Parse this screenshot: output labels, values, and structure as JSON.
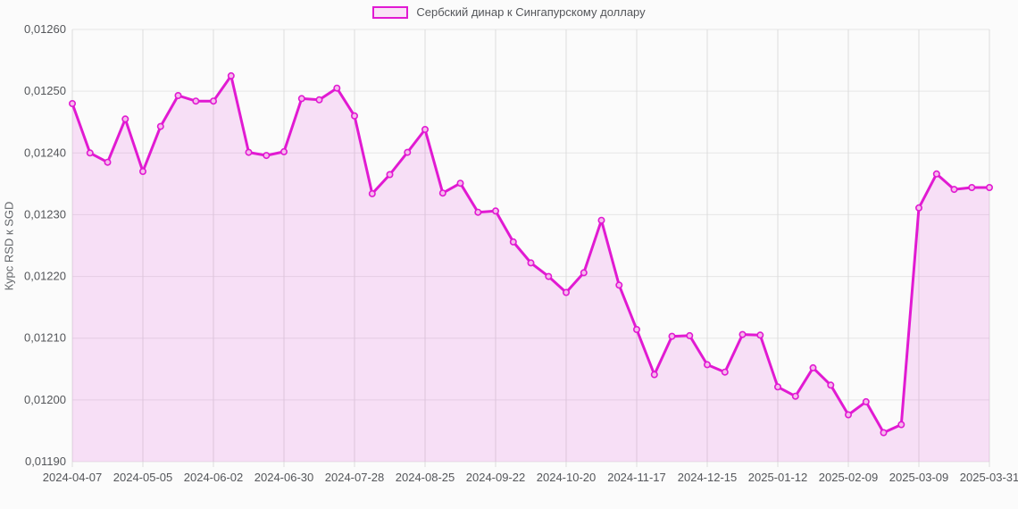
{
  "legend": {
    "label": "Сербский динар к Сингапурскому доллару"
  },
  "colors": {
    "line": "#e11ad2",
    "area_fill": "rgba(225,26,210,0.12)",
    "marker_fill": "#f5bcec",
    "grid_horizontal": "#e6e6e6",
    "grid_vertical": "#dcdcdc",
    "tick_text": "#54565a",
    "background": "#fbfbfb"
  },
  "chart_data": {
    "type": "area",
    "title": "",
    "legend": "Сербский динар к Сингапурскому доллару",
    "xlabel": "",
    "ylabel": "Курс RSD к SGD",
    "ylim": [
      0.0119,
      0.0126
    ],
    "grid": true,
    "legend_position": "top-center",
    "decimal_separator": ",",
    "y_tick_labels": [
      "0,01260",
      "0,01250",
      "0,01240",
      "0,01230",
      "0,01220",
      "0,01210",
      "0,01200",
      "0,01190"
    ],
    "y_tick_values": [
      0.0126,
      0.0125,
      0.0124,
      0.0123,
      0.0122,
      0.0121,
      0.012,
      0.0119
    ],
    "x_tick_indices": [
      0,
      4,
      8,
      12,
      16,
      20,
      24,
      28,
      32,
      36,
      40,
      44,
      48,
      52
    ],
    "x": [
      "2024-04-07",
      "2024-04-14",
      "2024-04-21",
      "2024-04-28",
      "2024-05-05",
      "2024-05-12",
      "2024-05-19",
      "2024-05-26",
      "2024-06-02",
      "2024-06-09",
      "2024-06-16",
      "2024-06-23",
      "2024-06-30",
      "2024-07-07",
      "2024-07-14",
      "2024-07-21",
      "2024-07-28",
      "2024-08-04",
      "2024-08-11",
      "2024-08-18",
      "2024-08-25",
      "2024-09-01",
      "2024-09-08",
      "2024-09-15",
      "2024-09-22",
      "2024-09-29",
      "2024-10-06",
      "2024-10-13",
      "2024-10-20",
      "2024-10-27",
      "2024-11-03",
      "2024-11-10",
      "2024-11-17",
      "2024-11-24",
      "2024-12-01",
      "2024-12-08",
      "2024-12-15",
      "2024-12-22",
      "2024-12-29",
      "2025-01-05",
      "2025-01-12",
      "2025-01-19",
      "2025-01-26",
      "2025-02-02",
      "2025-02-09",
      "2025-02-16",
      "2025-02-23",
      "2025-03-02",
      "2025-03-09",
      "2025-03-16",
      "2025-03-23",
      "2025-03-30",
      "2025-03-31"
    ],
    "values": [
      0.01248,
      0.0124,
      0.012385,
      0.012455,
      0.01237,
      0.012443,
      0.012493,
      0.012484,
      0.012484,
      0.012525,
      0.012401,
      0.012396,
      0.012402,
      0.012488,
      0.012486,
      0.012505,
      0.01246,
      0.012334,
      0.012365,
      0.012401,
      0.012438,
      0.012335,
      0.012351,
      0.012304,
      0.012306,
      0.012256,
      0.012222,
      0.0122,
      0.012174,
      0.012206,
      0.012291,
      0.012186,
      0.012114,
      0.012041,
      0.012103,
      0.012104,
      0.012057,
      0.012045,
      0.012106,
      0.012105,
      0.012021,
      0.012006,
      0.012052,
      0.012024,
      0.011976,
      0.011997,
      0.011947,
      0.01196,
      0.012311,
      0.012366,
      0.012341,
      0.012344,
      0.012344
    ]
  }
}
